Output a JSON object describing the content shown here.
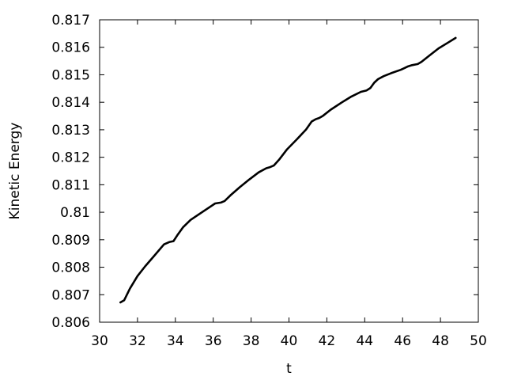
{
  "chart_data": {
    "type": "line",
    "title": "",
    "xlabel": "t",
    "ylabel": "Kinetic Energy",
    "xlim": [
      30,
      50
    ],
    "ylim": [
      0.806,
      0.817
    ],
    "xticks": [
      30,
      32,
      34,
      36,
      38,
      40,
      42,
      44,
      46,
      48,
      50
    ],
    "yticks": [
      0.806,
      0.807,
      0.808,
      0.809,
      0.81,
      0.811,
      0.812,
      0.813,
      0.814,
      0.815,
      0.816,
      0.817
    ],
    "xtick_labels": [
      "30",
      "32",
      "34",
      "36",
      "38",
      "40",
      "42",
      "44",
      "46",
      "48",
      "50"
    ],
    "ytick_labels": [
      "0.806",
      "0.807",
      "0.808",
      "0.809",
      "0.81",
      "0.811",
      "0.812",
      "0.813",
      "0.814",
      "0.815",
      "0.816",
      "0.817"
    ],
    "grid": false,
    "line_color": "#000000",
    "series": [
      {
        "x": [
          31.1,
          31.3,
          31.6,
          32.0,
          32.4,
          32.9,
          33.4,
          33.7,
          33.9,
          34.1,
          34.4,
          34.8,
          35.3,
          35.8,
          36.1,
          36.4,
          36.6,
          36.9,
          37.4,
          37.9,
          38.4,
          38.8,
          39.0,
          39.2,
          39.5,
          39.9,
          40.4,
          40.9,
          41.2,
          41.4,
          41.6,
          41.8,
          42.2,
          42.8,
          43.3,
          43.8,
          44.1,
          44.3,
          44.5,
          44.7,
          45.0,
          45.4,
          45.9,
          46.3,
          46.5,
          46.8,
          47.0,
          47.4,
          47.9,
          48.4,
          48.8
        ],
        "y": [
          0.80672,
          0.8068,
          0.80722,
          0.80768,
          0.80803,
          0.80843,
          0.80883,
          0.80892,
          0.80895,
          0.80916,
          0.80945,
          0.80972,
          0.80995,
          0.81018,
          0.81032,
          0.81035,
          0.81041,
          0.81061,
          0.81091,
          0.81119,
          0.81145,
          0.8116,
          0.81164,
          0.8117,
          0.81193,
          0.81229,
          0.81264,
          0.81301,
          0.8133,
          0.81338,
          0.81343,
          0.81351,
          0.81373,
          0.814,
          0.81421,
          0.81438,
          0.81443,
          0.81452,
          0.81471,
          0.81484,
          0.81495,
          0.81506,
          0.81518,
          0.81531,
          0.81535,
          0.81539,
          0.81547,
          0.81569,
          0.81596,
          0.81617,
          0.81634
        ]
      }
    ]
  }
}
